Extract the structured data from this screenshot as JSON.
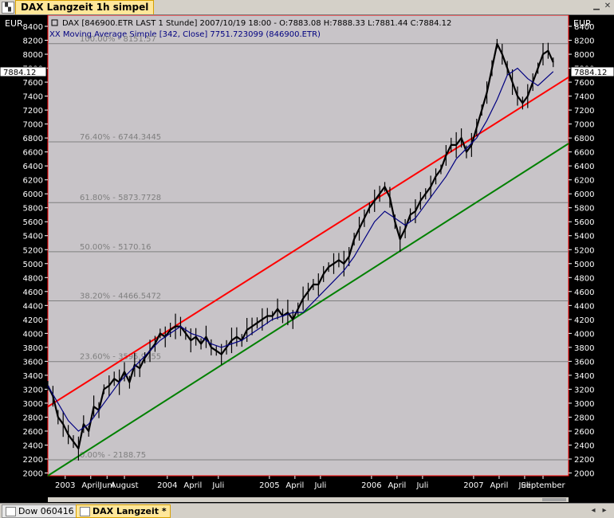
{
  "window": {
    "title": "DAX Langzeit 1h simpel"
  },
  "bottom_tabs": [
    {
      "label": "Dow 060416"
    },
    {
      "label": "DAX Langzeit *"
    }
  ],
  "header": {
    "line1": "DAX [846900.ETR LAST 1 Stunde] 2007/10/19 18:00 - O:7883.08 H:7888.33 L:7881.44 C:7884.12",
    "line2": "XX Moving Average Simple [342, Close] 7751.723099 (846900.ETR)"
  },
  "colors": {
    "background": "#c8c4c8",
    "frame": "#ff0000",
    "price": "#000000",
    "ma": "#000080",
    "upper_channel": "#ff0000",
    "lower_channel": "#008000",
    "fib": "#7f7f7f"
  },
  "chart_data": {
    "type": "line",
    "currency": "EUR",
    "last_price_label": "7884.12",
    "ylim": [
      1960,
      8560
    ],
    "y_ticks": [
      2000,
      2200,
      2400,
      2600,
      2800,
      3000,
      3200,
      3400,
      3600,
      3800,
      4000,
      4200,
      4400,
      4600,
      4800,
      5000,
      5200,
      5400,
      5600,
      5800,
      6000,
      6200,
      6400,
      6600,
      6800,
      7000,
      7200,
      7400,
      7600,
      7800,
      8000,
      8200,
      8400
    ],
    "x_ticks": [
      {
        "label": "2003",
        "t": 2003.02
      },
      {
        "label": "April",
        "t": 2003.27
      },
      {
        "label": "Juni",
        "t": 2003.43
      },
      {
        "label": "August",
        "t": 2003.6
      },
      {
        "label": "2004",
        "t": 2004.02
      },
      {
        "label": "April",
        "t": 2004.27
      },
      {
        "label": "Juli",
        "t": 2004.52
      },
      {
        "label": "2005",
        "t": 2005.02
      },
      {
        "label": "April",
        "t": 2005.27
      },
      {
        "label": "Juli",
        "t": 2005.52
      },
      {
        "label": "2006",
        "t": 2006.02
      },
      {
        "label": "April",
        "t": 2006.27
      },
      {
        "label": "Juli",
        "t": 2006.52
      },
      {
        "label": "2007",
        "t": 2007.02
      },
      {
        "label": "April",
        "t": 2007.27
      },
      {
        "label": "Juli",
        "t": 2007.52
      },
      {
        "label": "September",
        "t": 2007.7
      }
    ],
    "xlim": [
      2002.85,
      2007.95
    ],
    "fib_levels": [
      {
        "label": "100.00% - 8151.57",
        "value": 8151.57
      },
      {
        "label": "76.40% - 6744.3445",
        "value": 6744.3445
      },
      {
        "label": "61.80% - 5873.7728",
        "value": 5873.7728
      },
      {
        "label": "50.00% - 5170.16",
        "value": 5170.16
      },
      {
        "label": "38.20% - 4466.5472",
        "value": 4466.5472
      },
      {
        "label": "23.60% - 3595.9755",
        "value": 3595.9755
      },
      {
        "label": "0.00% - 2188.75",
        "value": 2188.75
      }
    ],
    "series": [
      {
        "type": "price",
        "x": [
          2002.85,
          2002.9,
          2002.95,
          2003.0,
          2003.05,
          2003.1,
          2003.15,
          2003.2,
          2003.25,
          2003.3,
          2003.35,
          2003.4,
          2003.45,
          2003.5,
          2003.55,
          2003.6,
          2003.65,
          2003.7,
          2003.75,
          2003.8,
          2003.85,
          2003.9,
          2003.95,
          2004.0,
          2004.05,
          2004.1,
          2004.15,
          2004.2,
          2004.25,
          2004.3,
          2004.35,
          2004.4,
          2004.45,
          2004.5,
          2004.55,
          2004.6,
          2004.65,
          2004.7,
          2004.75,
          2004.8,
          2004.85,
          2004.9,
          2004.95,
          2005.0,
          2005.05,
          2005.1,
          2005.15,
          2005.2,
          2005.25,
          2005.3,
          2005.35,
          2005.4,
          2005.45,
          2005.5,
          2005.55,
          2005.6,
          2005.65,
          2005.7,
          2005.75,
          2005.8,
          2005.85,
          2005.9,
          2005.95,
          2006.0,
          2006.05,
          2006.1,
          2006.15,
          2006.2,
          2006.25,
          2006.3,
          2006.35,
          2006.4,
          2006.45,
          2006.5,
          2006.55,
          2006.6,
          2006.65,
          2006.7,
          2006.75,
          2006.8,
          2006.85,
          2006.9,
          2006.95,
          2007.0,
          2007.05,
          2007.1,
          2007.15,
          2007.2,
          2007.25,
          2007.3,
          2007.35,
          2007.4,
          2007.45,
          2007.5,
          2007.55,
          2007.6,
          2007.65,
          2007.7,
          2007.75,
          2007.8
        ],
        "values": [
          3250,
          3100,
          2800,
          2700,
          2550,
          2450,
          2350,
          2700,
          2600,
          2950,
          2900,
          3200,
          3250,
          3350,
          3300,
          3450,
          3300,
          3550,
          3500,
          3650,
          3750,
          3850,
          4000,
          3950,
          4050,
          4100,
          4100,
          4000,
          3900,
          3950,
          3850,
          3950,
          3800,
          3750,
          3700,
          3800,
          3900,
          3950,
          3900,
          4050,
          4100,
          4150,
          4200,
          4250,
          4250,
          4350,
          4250,
          4300,
          4200,
          4350,
          4500,
          4600,
          4700,
          4700,
          4850,
          4950,
          5000,
          5050,
          5000,
          5100,
          5350,
          5500,
          5650,
          5800,
          5900,
          6000,
          6100,
          5950,
          5600,
          5350,
          5500,
          5700,
          5750,
          5900,
          6000,
          6100,
          6250,
          6350,
          6550,
          6700,
          6700,
          6800,
          6600,
          6700,
          6950,
          7200,
          7450,
          7800,
          8150,
          8000,
          7800,
          7600,
          7400,
          7300,
          7400,
          7600,
          7800,
          8000,
          8050,
          7884.12
        ]
      },
      {
        "type": "ma",
        "x": [
          2002.85,
          2002.95,
          2003.05,
          2003.15,
          2003.25,
          2003.35,
          2003.45,
          2003.55,
          2003.65,
          2003.75,
          2003.85,
          2003.95,
          2004.05,
          2004.15,
          2004.25,
          2004.35,
          2004.45,
          2004.55,
          2004.65,
          2004.75,
          2004.85,
          2004.95,
          2005.05,
          2005.15,
          2005.25,
          2005.35,
          2005.45,
          2005.55,
          2005.65,
          2005.75,
          2005.85,
          2005.95,
          2006.05,
          2006.15,
          2006.25,
          2006.35,
          2006.45,
          2006.55,
          2006.65,
          2006.75,
          2006.85,
          2006.95,
          2007.05,
          2007.15,
          2007.25,
          2007.35,
          2007.45,
          2007.55,
          2007.65,
          2007.8
        ],
        "values": [
          3250,
          3000,
          2750,
          2600,
          2700,
          2900,
          3100,
          3300,
          3450,
          3600,
          3750,
          3900,
          4000,
          4100,
          4000,
          3950,
          3850,
          3800,
          3850,
          3900,
          4000,
          4100,
          4200,
          4250,
          4300,
          4300,
          4450,
          4600,
          4750,
          4900,
          5100,
          5350,
          5600,
          5750,
          5650,
          5550,
          5650,
          5850,
          6050,
          6250,
          6500,
          6650,
          6800,
          7050,
          7350,
          7700,
          7800,
          7650,
          7550,
          7751.72
        ]
      }
    ],
    "channel_upper": {
      "x": [
        2002.85,
        2007.95
      ],
      "values": [
        2950,
        7670
      ]
    },
    "channel_lower": {
      "x": [
        2002.85,
        2007.95
      ],
      "values": [
        1960,
        6720
      ]
    }
  }
}
